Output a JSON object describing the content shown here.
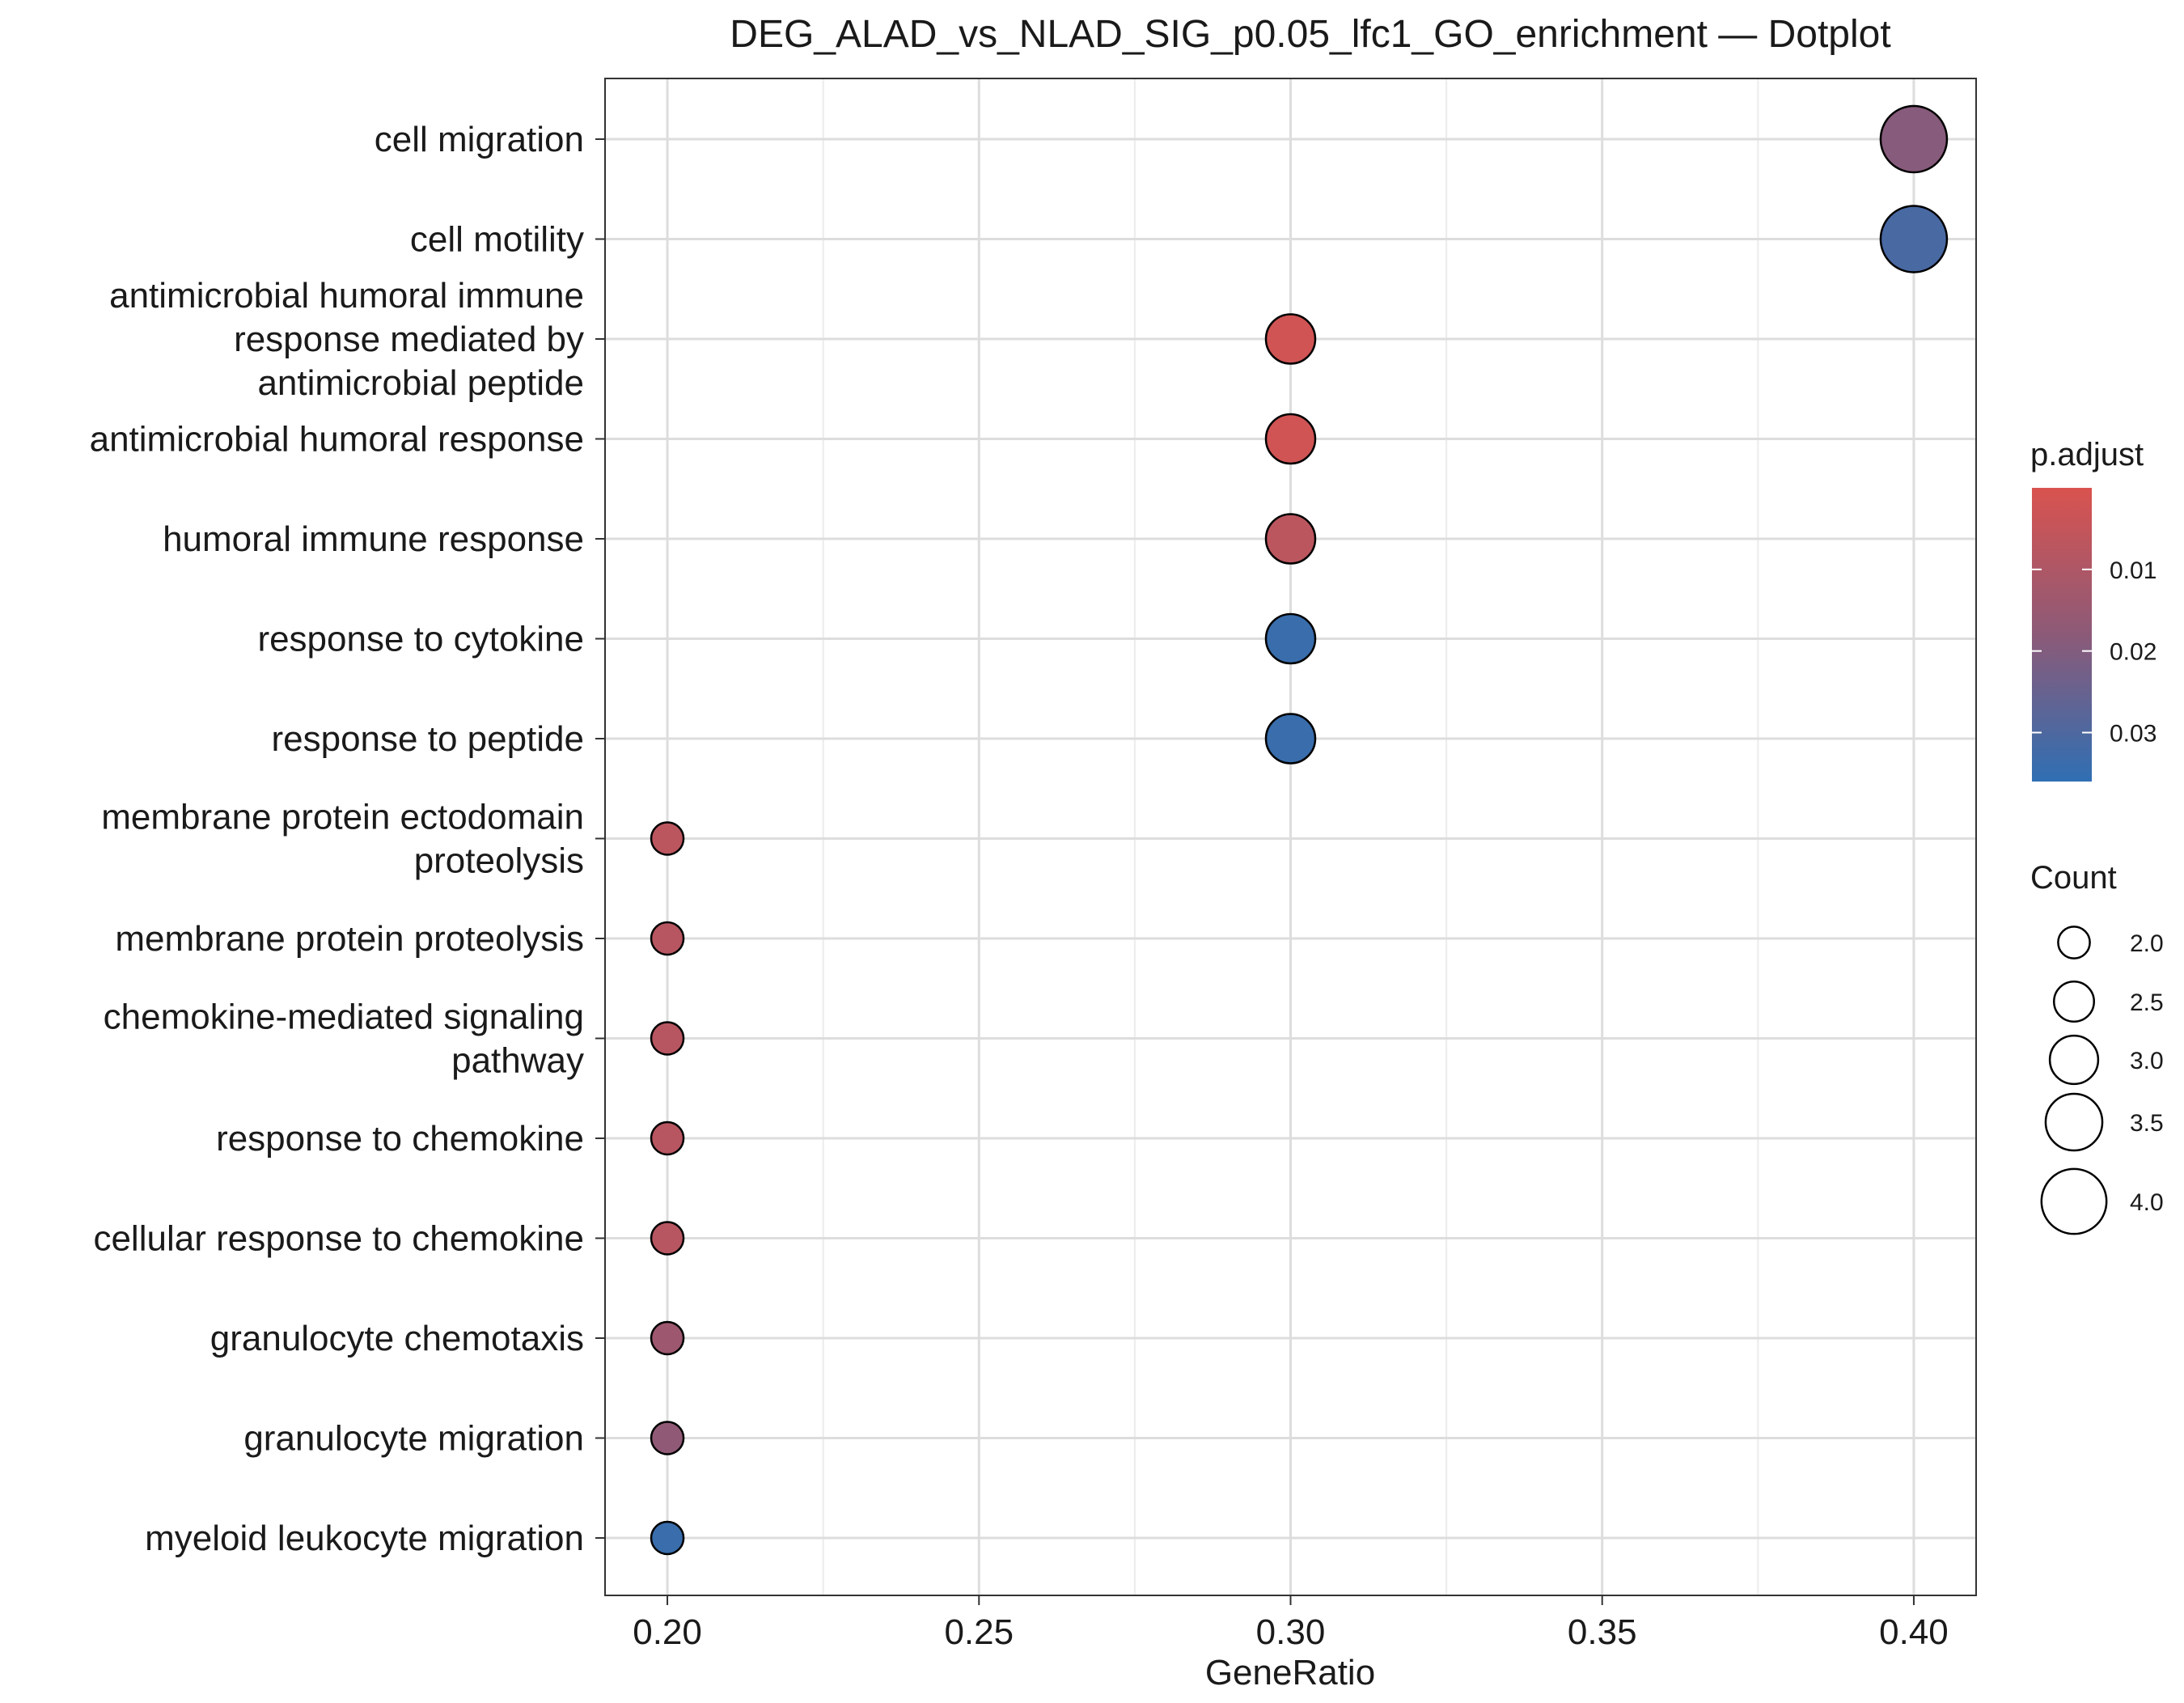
{
  "chart_data": {
    "type": "scatter",
    "title": "DEG_ALAD_vs_NLAD_SIG_p0.05_lfc1_GO_enrichment — Dotplot",
    "xlabel": "GeneRatio",
    "ylabel": "",
    "xlim": [
      0.19,
      0.41
    ],
    "x_ticks": [
      "0.20",
      "0.25",
      "0.30",
      "0.35",
      "0.40"
    ],
    "grid": true,
    "legend_position": "right",
    "color_scale": {
      "low_color": "#d9534f",
      "high_color": "#2f6fb3"
    },
    "terms": [
      {
        "label": [
          "cell migration"
        ],
        "gene_ratio": 0.4,
        "count": 4,
        "p_adjust": 0.019
      },
      {
        "label": [
          "cell motility"
        ],
        "gene_ratio": 0.4,
        "count": 4,
        "p_adjust": 0.031
      },
      {
        "label": [
          "antimicrobial humoral immune",
          "response mediated by",
          "antimicrobial peptide"
        ],
        "gene_ratio": 0.3,
        "count": 3,
        "p_adjust": 0.002
      },
      {
        "label": [
          "antimicrobial humoral response"
        ],
        "gene_ratio": 0.3,
        "count": 3,
        "p_adjust": 0.002
      },
      {
        "label": [
          "humoral immune response"
        ],
        "gene_ratio": 0.3,
        "count": 3,
        "p_adjust": 0.007
      },
      {
        "label": [
          "response to cytokine"
        ],
        "gene_ratio": 0.3,
        "count": 3,
        "p_adjust": 0.034
      },
      {
        "label": [
          "response to peptide"
        ],
        "gene_ratio": 0.3,
        "count": 3,
        "p_adjust": 0.034
      },
      {
        "label": [
          "membrane protein ectodomain",
          "proteolysis"
        ],
        "gene_ratio": 0.2,
        "count": 2,
        "p_adjust": 0.007
      },
      {
        "label": [
          "membrane protein proteolysis"
        ],
        "gene_ratio": 0.2,
        "count": 2,
        "p_adjust": 0.008
      },
      {
        "label": [
          "chemokine-mediated signaling",
          "pathway"
        ],
        "gene_ratio": 0.2,
        "count": 2,
        "p_adjust": 0.008
      },
      {
        "label": [
          "response to chemokine"
        ],
        "gene_ratio": 0.2,
        "count": 2,
        "p_adjust": 0.008
      },
      {
        "label": [
          "cellular response to chemokine"
        ],
        "gene_ratio": 0.2,
        "count": 2,
        "p_adjust": 0.008
      },
      {
        "label": [
          "granulocyte chemotaxis"
        ],
        "gene_ratio": 0.2,
        "count": 2,
        "p_adjust": 0.014
      },
      {
        "label": [
          "granulocyte migration"
        ],
        "gene_ratio": 0.2,
        "count": 2,
        "p_adjust": 0.017
      },
      {
        "label": [
          "myeloid leukocyte migration"
        ],
        "gene_ratio": 0.2,
        "count": 2,
        "p_adjust": 0.034
      }
    ],
    "legend_color": {
      "title": "p.adjust",
      "range": [
        0.0,
        0.036
      ],
      "ticks": [
        {
          "label": "0.01",
          "value": 0.01
        },
        {
          "label": "0.02",
          "value": 0.02
        },
        {
          "label": "0.03",
          "value": 0.03
        }
      ]
    },
    "legend_size": {
      "title": "Count",
      "range": [
        2,
        4
      ],
      "entries": [
        {
          "label": "2.0",
          "value": 2.0
        },
        {
          "label": "2.5",
          "value": 2.5
        },
        {
          "label": "3.0",
          "value": 3.0
        },
        {
          "label": "3.5",
          "value": 3.5
        },
        {
          "label": "4.0",
          "value": 4.0
        }
      ]
    }
  }
}
